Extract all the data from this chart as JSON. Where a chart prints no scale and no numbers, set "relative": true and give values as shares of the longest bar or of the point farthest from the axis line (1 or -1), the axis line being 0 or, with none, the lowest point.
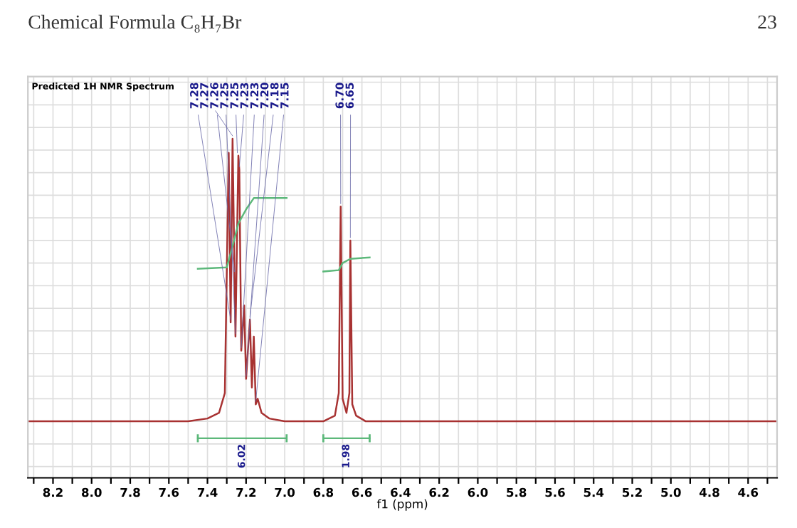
{
  "chart_data": {
    "type": "line",
    "title": "Chemical Formula C₈H₇Br",
    "subtitle": "Predicted 1H NMR Spectrum",
    "xlabel": "f1 (ppm)",
    "relative": true,
    "grid": true,
    "xlim": [
      8.33,
      4.45
    ],
    "xticks": [
      {
        "value": 8.3,
        "label": null
      },
      8.2,
      {
        "value": 8.1,
        "label": null
      },
      {
        "value": 8,
        "label": "8.0"
      },
      {
        "value": 7.9,
        "label": null
      },
      7.8,
      {
        "value": 7.7,
        "label": null
      },
      7.6,
      {
        "value": 7.5,
        "label": null
      },
      7.4,
      {
        "value": 7.3,
        "label": null
      },
      7.2,
      {
        "value": 7.1,
        "label": null
      },
      {
        "value": 7,
        "label": "7.0"
      },
      {
        "value": 6.9,
        "label": null
      },
      6.8,
      {
        "value": 6.7,
        "label": null
      },
      6.6,
      {
        "value": 6.5,
        "label": null
      },
      6.4,
      {
        "value": 6.3,
        "label": null
      },
      6.2,
      {
        "value": 6.1,
        "label": null
      },
      {
        "value": 6,
        "label": "6.0"
      },
      {
        "value": 5.9,
        "label": null
      },
      5.8,
      {
        "value": 5.7,
        "label": null
      },
      5.6,
      {
        "value": 5.5,
        "label": null
      },
      5.4,
      {
        "value": 5.3,
        "label": null
      },
      5.2,
      {
        "value": 5.1,
        "label": null
      },
      {
        "value": 5,
        "label": "5.0"
      },
      {
        "value": 4.9,
        "label": null
      },
      4.8,
      {
        "value": 4.7,
        "label": null
      },
      4.6,
      {
        "value": 4.5,
        "label": null
      }
    ],
    "series": [
      {
        "color": "#a83232",
        "x": [
          8.33,
          7.5,
          7.4,
          7.34,
          7.31,
          7.29,
          7.28,
          7.27,
          7.26,
          7.255,
          7.24,
          7.235,
          7.225,
          7.21,
          7.2,
          7.18,
          7.17,
          7.16,
          7.15,
          7.14,
          7.12,
          7.08,
          7.0,
          6.8,
          6.74,
          6.72,
          6.71,
          6.7,
          6.68,
          6.665,
          6.66,
          6.65,
          6.63,
          6.58,
          4.45
        ],
        "values": [
          0,
          0,
          0.01,
          0.03,
          0.1,
          0.95,
          0.35,
          1.0,
          0.52,
          0.3,
          0.94,
          0.89,
          0.25,
          0.41,
          0.15,
          0.36,
          0.12,
          0.3,
          0.06,
          0.08,
          0.03,
          0.01,
          0,
          0,
          0.02,
          0.1,
          0.76,
          0.08,
          0.03,
          0.1,
          0.64,
          0.06,
          0.02,
          0,
          0
        ]
      },
      {
        "color": "#5cb87a",
        "x": [
          7.45,
          7.3,
          7.27,
          7.24,
          7.2,
          7.16,
          6.99
        ],
        "values": [
          0.54,
          0.545,
          0.62,
          0.7,
          0.75,
          0.79,
          0.79
        ]
      },
      {
        "color": "#5cb87a",
        "x": [
          6.8,
          6.72,
          6.7,
          6.66,
          6.56
        ],
        "values": [
          0.53,
          0.535,
          0.56,
          0.575,
          0.58
        ]
      }
    ],
    "legend": false,
    "annotations": [
      {
        "text": "7.28",
        "x": 7.28,
        "y": 0.35
      },
      {
        "text": "7.27",
        "x": 7.27,
        "y": 1.0
      },
      {
        "text": "7.26",
        "x": 7.26,
        "y": 0.52
      },
      {
        "text": "7.25",
        "x": 7.255,
        "y": 0.3
      },
      {
        "text": "7.25",
        "x": 7.245,
        "y": 0.94
      },
      {
        "text": "7.23",
        "x": 7.235,
        "y": 0.89
      },
      {
        "text": "7.23",
        "x": 7.225,
        "y": 0.25
      },
      {
        "text": "7.20",
        "x": 7.2,
        "y": 0.15
      },
      {
        "text": "7.18",
        "x": 7.18,
        "y": 0.36
      },
      {
        "text": "7.15",
        "x": 7.15,
        "y": 0.06
      },
      {
        "text": "6.70",
        "x": 6.71,
        "y": 0.76
      },
      {
        "text": "6.65",
        "x": 6.66,
        "y": 0.64
      },
      "6.02",
      "1.98",
      "23"
    ]
  }
}
